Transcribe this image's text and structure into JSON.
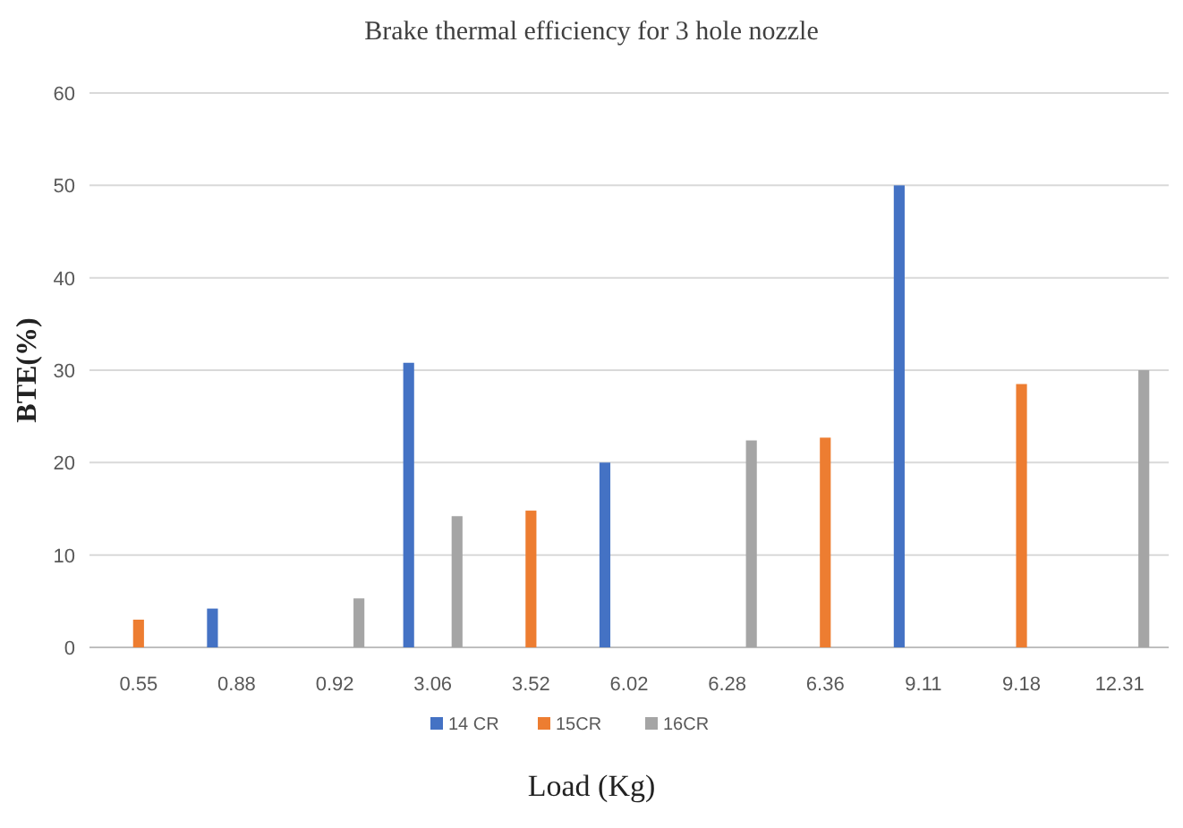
{
  "chart_data": {
    "type": "bar",
    "title": "Brake thermal efficiency for 3 hole nozzle",
    "xlabel": "Load (Kg)",
    "ylabel": "BTE(%)",
    "categories": [
      "0.55",
      "0.88",
      "0.92",
      "3.06",
      "3.52",
      "6.02",
      "6.28",
      "6.36",
      "9.11",
      "9.18",
      "12.31"
    ],
    "series": [
      {
        "name": "14 CR",
        "color": "#4472c4",
        "values": [
          null,
          4.2,
          null,
          30.8,
          null,
          20,
          null,
          null,
          50,
          null,
          null
        ]
      },
      {
        "name": "15CR",
        "color": "#ed7d31",
        "values": [
          3,
          null,
          null,
          null,
          14.8,
          null,
          null,
          22.7,
          null,
          28.5,
          null
        ]
      },
      {
        "name": "16CR",
        "color": "#a5a5a5",
        "values": [
          null,
          null,
          5.3,
          14.2,
          null,
          null,
          22.4,
          null,
          null,
          null,
          30
        ]
      }
    ],
    "ylim": [
      0,
      60
    ],
    "yticks": [
      0,
      10,
      20,
      30,
      40,
      50,
      60
    ],
    "grid": "y",
    "legend": "bottom"
  }
}
